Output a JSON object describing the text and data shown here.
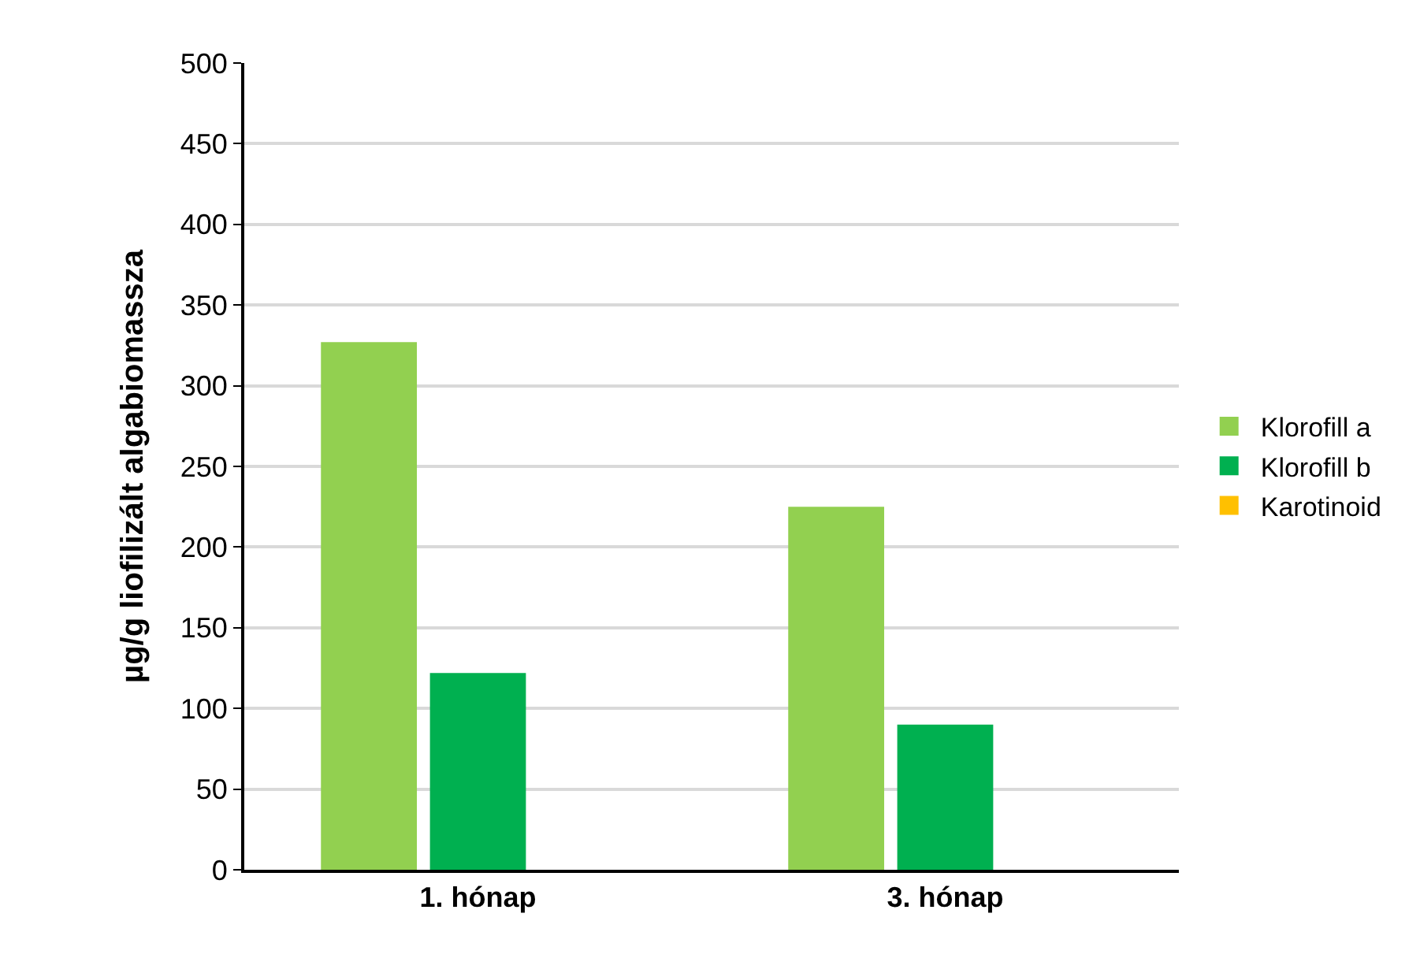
{
  "chart_data": {
    "type": "bar",
    "ylabel": "µg/g liofilizált algabiomassza",
    "categories": [
      "1. hónap",
      "3. hónap"
    ],
    "series": [
      {
        "name": "Klorofill a",
        "color": "#92d050",
        "values": [
          327,
          225
        ]
      },
      {
        "name": "Klorofill b",
        "color": "#00b050",
        "values": [
          122,
          90
        ]
      },
      {
        "name": "Karotinoid",
        "color": "#ffc000",
        "values": [
          null,
          null
        ]
      }
    ],
    "ylim": [
      0,
      500
    ],
    "yticks": [
      0,
      50,
      100,
      150,
      200,
      250,
      300,
      350,
      400,
      450,
      500
    ],
    "grid": "y",
    "legend": "right"
  }
}
